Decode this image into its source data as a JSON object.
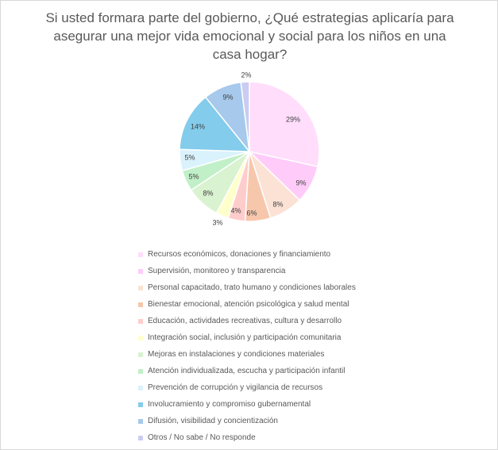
{
  "chart_data": {
    "type": "pie",
    "title": "Si usted formara parte del gobierno, ¿Qué estrategias aplicaría para asegurar una mejor vida emocional y social para los niños en una casa hogar?",
    "title_lines": [
      "Si usted formara parte del gobierno, ¿Qué estrategias aplicaría para",
      "asegurar una mejor vida emocional y social para los niños en una",
      "casa hogar?"
    ],
    "categories": [
      "Recursos económicos, donaciones y financiamiento",
      "Supervisión, monitoreo y transparencia",
      "Personal capacitado, trato humano y condiciones laborales",
      "Bienestar emocional, atención psicológica y salud mental",
      "Educación, actividades recreativas, cultura y desarrollo",
      "Integración social, inclusión y participación comunitaria",
      "Mejoras en instalaciones y condiciones materiales",
      "Atención individualizada, escucha y participación infantil",
      "Prevención de corrupción y vigilancia de recursos",
      "Involucramiento y compromiso gubernamental",
      "Difusión, visibilidad y concientización",
      "Otros / No sabe / No responde"
    ],
    "values": [
      29,
      9,
      8,
      6,
      4,
      3,
      8,
      5,
      5,
      14,
      9,
      2
    ],
    "data_labels": [
      "29%",
      "9%",
      "8%",
      "6%",
      "4%",
      "3%",
      "8%",
      "5%",
      "5%",
      "14%",
      "9%",
      "2%"
    ],
    "colors": [
      "#FFDDFB",
      "#FFCCF9",
      "#FBE2D5",
      "#F7C7AC",
      "#FFCCCC",
      "#FFFFCC",
      "#D9F2D0",
      "#C1F0C8",
      "#DAF2FC",
      "#83CCEB",
      "#A6C9EC",
      "#CBCCF2"
    ],
    "legend_position": "bottom"
  }
}
